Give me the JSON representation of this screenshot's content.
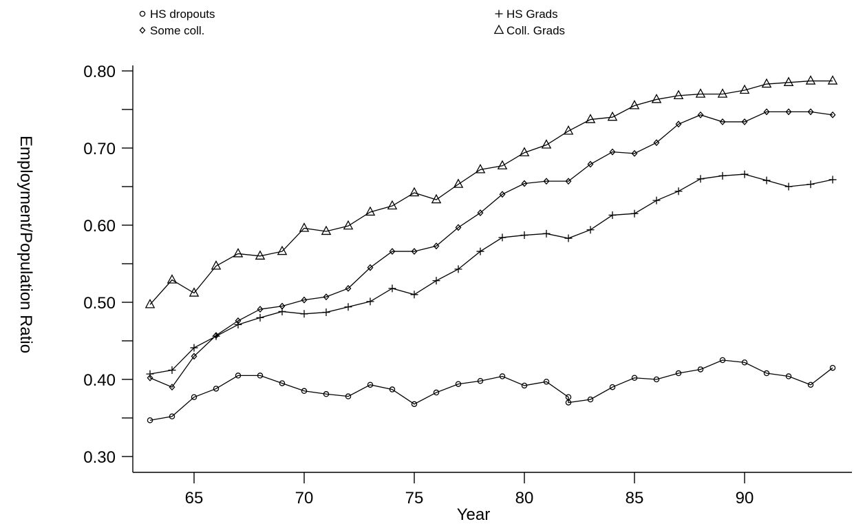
{
  "chart_data": {
    "type": "line",
    "xlabel": "Year",
    "ylabel": "Employment/Population Ratio",
    "xlim": [
      63,
      94
    ],
    "ylim": [
      0.3,
      0.8
    ],
    "x_ticks": [
      {
        "value": 65,
        "label": "65"
      },
      {
        "value": 70,
        "label": "70"
      },
      {
        "value": 75,
        "label": "75"
      },
      {
        "value": 80,
        "label": "80"
      },
      {
        "value": 85,
        "label": "85"
      },
      {
        "value": 90,
        "label": "90"
      }
    ],
    "y_ticks": [
      {
        "value": 0.3,
        "label": "0.30"
      },
      {
        "value": 0.35,
        "label": ""
      },
      {
        "value": 0.4,
        "label": "0.40"
      },
      {
        "value": 0.45,
        "label": ""
      },
      {
        "value": 0.5,
        "label": "0.50"
      },
      {
        "value": 0.55,
        "label": ""
      },
      {
        "value": 0.6,
        "label": "0.60"
      },
      {
        "value": 0.65,
        "label": ""
      },
      {
        "value": 0.7,
        "label": "0.70"
      },
      {
        "value": 0.75,
        "label": ""
      },
      {
        "value": 0.8,
        "label": "0.80"
      }
    ],
    "legend_position": "top",
    "grid": false,
    "series": [
      {
        "name": "HS dropouts",
        "marker": "circle",
        "x": [
          63,
          64,
          65,
          66,
          67,
          68,
          69,
          70,
          71,
          72,
          73,
          74,
          75,
          76,
          77,
          78,
          79,
          80,
          81,
          82,
          82,
          83,
          84,
          85,
          86,
          87,
          88,
          89,
          90,
          91,
          92,
          93,
          94
        ],
        "y": [
          0.347,
          0.352,
          0.377,
          0.388,
          0.405,
          0.405,
          0.395,
          0.385,
          0.381,
          0.378,
          0.393,
          0.387,
          0.368,
          0.383,
          0.394,
          0.398,
          0.404,
          0.392,
          0.397,
          0.377,
          0.37,
          0.374,
          0.39,
          0.402,
          0.4,
          0.408,
          0.413,
          0.425,
          0.422,
          0.408,
          0.404,
          0.393,
          0.415
        ]
      },
      {
        "name": "HS Grads",
        "marker": "plus",
        "x": [
          63,
          64,
          65,
          66,
          67,
          68,
          69,
          70,
          71,
          72,
          73,
          74,
          75,
          76,
          77,
          78,
          79,
          80,
          81,
          82,
          83,
          84,
          85,
          86,
          87,
          88,
          89,
          90,
          91,
          92,
          93,
          94
        ],
        "y": [
          0.407,
          0.412,
          0.441,
          0.456,
          0.471,
          0.48,
          0.488,
          0.485,
          0.487,
          0.494,
          0.501,
          0.518,
          0.51,
          0.528,
          0.543,
          0.566,
          0.584,
          0.587,
          0.589,
          0.583,
          0.594,
          0.613,
          0.615,
          0.632,
          0.644,
          0.66,
          0.664,
          0.666,
          0.658,
          0.65,
          0.653,
          0.659
        ]
      },
      {
        "name": "Some coll.",
        "marker": "diamond",
        "x": [
          63,
          64,
          65,
          66,
          67,
          68,
          69,
          70,
          71,
          72,
          73,
          74,
          75,
          76,
          77,
          78,
          79,
          80,
          81,
          82,
          83,
          84,
          85,
          86,
          87,
          88,
          89,
          90,
          91,
          92,
          93,
          94
        ],
        "y": [
          0.402,
          0.39,
          0.43,
          0.457,
          0.476,
          0.491,
          0.495,
          0.503,
          0.507,
          0.518,
          0.545,
          0.566,
          0.566,
          0.573,
          0.597,
          0.616,
          0.64,
          0.654,
          0.657,
          0.657,
          0.679,
          0.695,
          0.693,
          0.707,
          0.731,
          0.743,
          0.734,
          0.734,
          0.747,
          0.747,
          0.747,
          0.743
        ]
      },
      {
        "name": "Coll. Grads",
        "marker": "triangle",
        "x": [
          63,
          64,
          65,
          66,
          67,
          68,
          69,
          70,
          71,
          72,
          73,
          74,
          75,
          76,
          77,
          78,
          79,
          80,
          81,
          82,
          83,
          84,
          85,
          86,
          87,
          88,
          89,
          90,
          91,
          92,
          93,
          94
        ],
        "y": [
          0.497,
          0.529,
          0.512,
          0.547,
          0.563,
          0.56,
          0.566,
          0.596,
          0.592,
          0.599,
          0.617,
          0.625,
          0.642,
          0.633,
          0.653,
          0.672,
          0.677,
          0.694,
          0.704,
          0.722,
          0.737,
          0.74,
          0.755,
          0.763,
          0.768,
          0.77,
          0.77,
          0.775,
          0.783,
          0.785,
          0.787,
          0.787
        ]
      }
    ]
  }
}
